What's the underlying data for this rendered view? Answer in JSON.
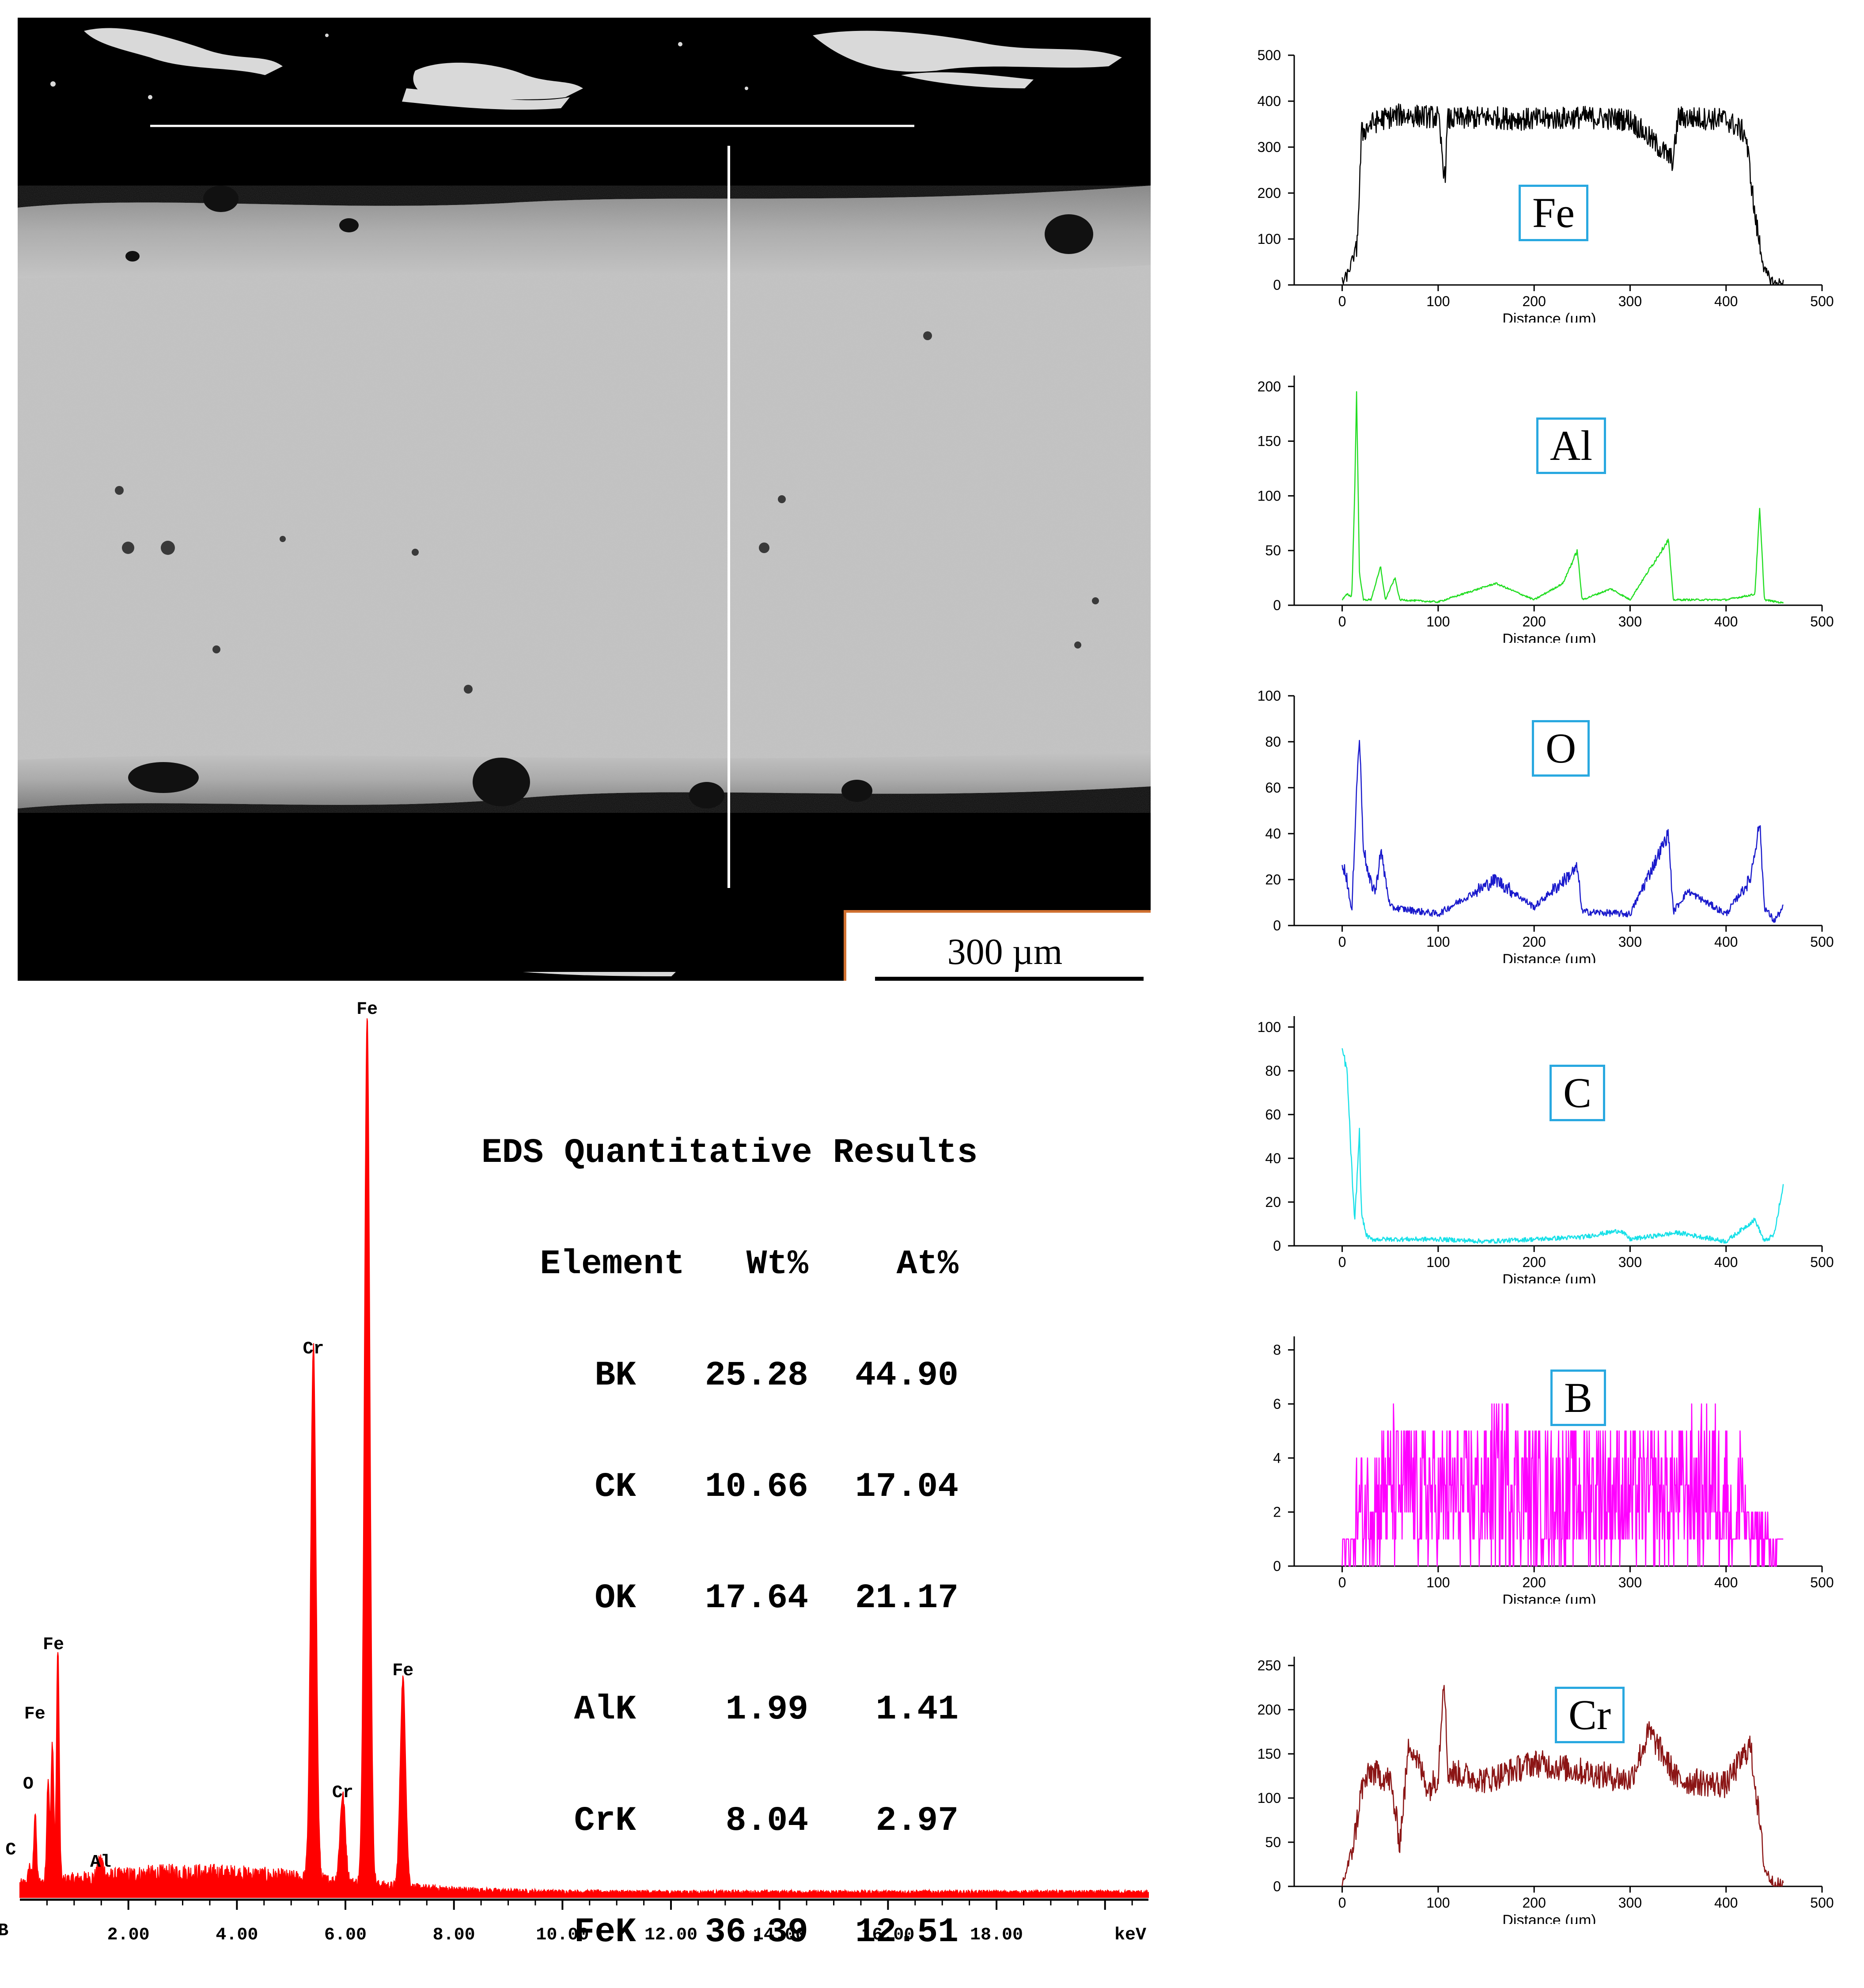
{
  "sem_image": {
    "scale_label": "300 µm",
    "colors": {
      "background": "#000000",
      "coating": "#c4c4c4",
      "line": "#ffffff",
      "frame": "#d07030"
    }
  },
  "eds_spectrum": {
    "x_axis_unit": "keV",
    "x_ticks": [
      "2.00",
      "4.00",
      "6.00",
      "8.00",
      "10.00",
      "12.00",
      "14.00",
      "16.00",
      "18.00"
    ],
    "peak_labels": [
      "B",
      "C",
      "O",
      "Fe",
      "Fe",
      "Al",
      "Cr",
      "Cr",
      "Fe",
      "Fe"
    ],
    "color": "#ff0000"
  },
  "eds_table": {
    "title": "EDS Quantitative Results",
    "headers": [
      "Element",
      "Wt%",
      "At%"
    ],
    "rows": [
      {
        "element": "BK",
        "wt": "25.28",
        "at": "44.90"
      },
      {
        "element": "CK",
        "wt": "10.66",
        "at": "17.04"
      },
      {
        "element": "OK",
        "wt": "17.64",
        "at": "21.17"
      },
      {
        "element": "AlK",
        "wt": "1.99",
        "at": "1.41"
      },
      {
        "element": "CrK",
        "wt": "8.04",
        "at": "2.97"
      },
      {
        "element": "FeK",
        "wt": "36.39",
        "at": "12.51"
      }
    ]
  },
  "chart_data": [
    {
      "type": "line",
      "title": "",
      "xlabel": "keV",
      "ylabel": "",
      "xlim": [
        0,
        20.8
      ],
      "x_ticks": [
        2,
        4,
        6,
        8,
        10,
        12,
        14,
        16,
        18
      ],
      "peaks": [
        {
          "label": "B",
          "x": 0.18,
          "y": 0.02
        },
        {
          "label": "C",
          "x": 0.28,
          "y": 0.08
        },
        {
          "label": "O",
          "x": 0.52,
          "y": 0.12
        },
        {
          "label": "Fe",
          "x": 0.6,
          "y": 0.16
        },
        {
          "label": "Fe",
          "x": 0.7,
          "y": 0.27
        },
        {
          "label": "Al",
          "x": 1.49,
          "y": 0.02
        },
        {
          "label": "Cr",
          "x": 5.41,
          "y": 0.61
        },
        {
          "label": "Cr",
          "x": 5.95,
          "y": 0.1
        },
        {
          "label": "Fe",
          "x": 6.4,
          "y": 1.0
        },
        {
          "label": "Fe",
          "x": 7.06,
          "y": 0.24
        }
      ]
    },
    {
      "type": "line",
      "series": [
        {
          "name": "Fe"
        }
      ],
      "xlabel": "Distance (µm)",
      "xlim": [
        -50,
        500
      ],
      "ylim": [
        0,
        500
      ],
      "x_ticks": [
        0,
        100,
        200,
        300,
        400,
        500
      ],
      "y_ticks": [
        0,
        100,
        200,
        300,
        400,
        500
      ],
      "color": "#000000",
      "x": [
        0,
        5,
        10,
        15,
        18,
        20,
        25,
        30,
        40,
        60,
        100,
        107,
        110,
        150,
        200,
        250,
        300,
        345,
        350,
        400,
        420,
        425,
        430,
        440,
        450,
        460
      ],
      "y": [
        5,
        20,
        50,
        80,
        200,
        330,
        340,
        350,
        360,
        370,
        365,
        230,
        360,
        365,
        360,
        365,
        360,
        270,
        365,
        360,
        330,
        250,
        150,
        30,
        3,
        3
      ]
    },
    {
      "type": "line",
      "series": [
        {
          "name": "Al"
        }
      ],
      "xlabel": "Distance (µm)",
      "xlim": [
        -50,
        500
      ],
      "ylim": [
        0,
        210
      ],
      "x_ticks": [
        0,
        100,
        200,
        300,
        400,
        500
      ],
      "y_ticks": [
        0,
        50,
        100,
        150,
        200
      ],
      "color": "#22dd22",
      "x": [
        0,
        5,
        10,
        13,
        15,
        18,
        22,
        30,
        40,
        45,
        55,
        60,
        100,
        160,
        200,
        230,
        245,
        250,
        280,
        300,
        340,
        345,
        400,
        430,
        435,
        440,
        460
      ],
      "y": [
        5,
        10,
        8,
        100,
        195,
        30,
        5,
        5,
        35,
        5,
        25,
        5,
        3,
        20,
        5,
        20,
        50,
        5,
        15,
        5,
        60,
        5,
        5,
        10,
        88,
        5,
        2
      ]
    },
    {
      "type": "line",
      "series": [
        {
          "name": "O"
        }
      ],
      "xlabel": "Distance (µm)",
      "xlim": [
        -50,
        500
      ],
      "ylim": [
        0,
        100
      ],
      "x_ticks": [
        0,
        100,
        200,
        300,
        400,
        500
      ],
      "y_ticks": [
        0,
        20,
        40,
        60,
        80,
        100
      ],
      "color": "#1a1acc",
      "x": [
        0,
        5,
        10,
        15,
        18,
        22,
        28,
        35,
        40,
        50,
        100,
        160,
        200,
        245,
        250,
        300,
        340,
        345,
        360,
        400,
        425,
        435,
        440,
        450,
        460
      ],
      "y": [
        28,
        20,
        5,
        60,
        82,
        35,
        20,
        15,
        33,
        8,
        5,
        20,
        8,
        25,
        6,
        5,
        40,
        6,
        15,
        5,
        20,
        45,
        8,
        2,
        8
      ]
    },
    {
      "type": "line",
      "series": [
        {
          "name": "C"
        }
      ],
      "xlabel": "Distance (µm)",
      "xlim": [
        -50,
        500
      ],
      "ylim": [
        0,
        105
      ],
      "x_ticks": [
        0,
        100,
        200,
        300,
        400,
        500
      ],
      "y_ticks": [
        0,
        20,
        40,
        60,
        80,
        100
      ],
      "color": "#18e0e8",
      "x": [
        0,
        5,
        10,
        13,
        18,
        20,
        25,
        30,
        50,
        100,
        150,
        200,
        250,
        290,
        300,
        350,
        400,
        430,
        440,
        450,
        460
      ],
      "y": [
        90,
        80,
        35,
        10,
        52,
        15,
        5,
        3,
        3,
        3,
        2,
        3,
        4,
        7,
        3,
        6,
        2,
        12,
        2,
        5,
        28
      ]
    },
    {
      "type": "line",
      "series": [
        {
          "name": "B"
        }
      ],
      "xlabel": "Distance (µm)",
      "xlim": [
        -50,
        500
      ],
      "ylim": [
        0,
        8.5
      ],
      "x_ticks": [
        0,
        100,
        200,
        300,
        400,
        500
      ],
      "y_ticks": [
        0,
        2,
        4,
        6,
        8
      ],
      "color": "#ff00ff",
      "x": [
        0,
        5,
        10,
        15,
        50,
        100,
        150,
        170,
        200,
        250,
        270,
        300,
        350,
        400,
        410,
        415,
        420,
        430,
        440,
        450,
        455,
        460
      ],
      "y": [
        0,
        2,
        0.5,
        4,
        6,
        5,
        5.5,
        7,
        5,
        5.5,
        6,
        5,
        5.5,
        6,
        1,
        8,
        3,
        0.5,
        2,
        0,
        1,
        0
      ]
    },
    {
      "type": "line",
      "series": [
        {
          "name": "Cr"
        }
      ],
      "xlabel": "Distance (µm)",
      "xlim": [
        -50,
        500
      ],
      "ylim": [
        0,
        260
      ],
      "x_ticks": [
        0,
        100,
        200,
        300,
        400,
        500
      ],
      "y_ticks": [
        0,
        50,
        100,
        150,
        200,
        250
      ],
      "color": "#8b1515",
      "x": [
        0,
        5,
        10,
        15,
        20,
        30,
        50,
        60,
        70,
        90,
        100,
        106,
        110,
        150,
        200,
        250,
        300,
        320,
        350,
        400,
        425,
        430,
        440,
        450,
        460
      ],
      "y": [
        2,
        20,
        40,
        70,
        110,
        130,
        120,
        50,
        165,
        110,
        125,
        245,
        130,
        120,
        140,
        130,
        120,
        175,
        120,
        115,
        160,
        120,
        20,
        2,
        2
      ]
    }
  ]
}
